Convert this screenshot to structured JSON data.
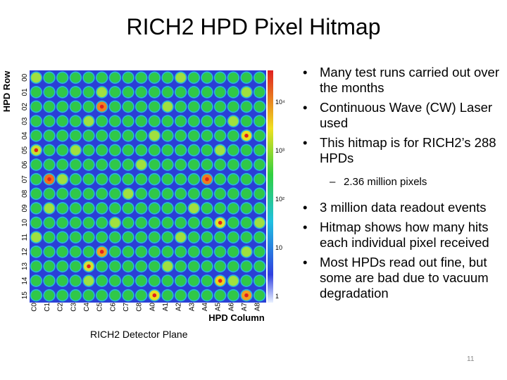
{
  "title": "RICH2 HPD Pixel Hitmap",
  "figure": {
    "axis_y_label": "HPD Row",
    "axis_x_label": "HPD Column",
    "row_labels": [
      "00",
      "01",
      "02",
      "03",
      "04",
      "05",
      "06",
      "07",
      "08",
      "09",
      "10",
      "11",
      "12",
      "13",
      "14",
      "15"
    ],
    "column_labels": [
      "C0",
      "C1",
      "C2",
      "C3",
      "C4",
      "C5",
      "C6",
      "C7",
      "C8",
      "A0",
      "A1",
      "A2",
      "A3",
      "A4",
      "A5",
      "A6",
      "A7",
      "A8"
    ],
    "colorbar_labels": [
      "10⁴",
      "10³",
      "10²",
      "10",
      "1"
    ],
    "caption": "RICH2 Detector Plane"
  },
  "bullets": [
    {
      "text": "Many test runs carried out over the months"
    },
    {
      "text": "Continuous Wave (CW) Laser used"
    },
    {
      "text": "This hitmap is for RICH2’s 288 HPDs",
      "sub": [
        "2.36 million pixels"
      ]
    },
    {
      "text": "3 million data readout events"
    },
    {
      "text": "Hitmap shows how many hits each individual pixel received"
    },
    {
      "text": "Most HPDs read out fine, but some are bad due to vacuum degradation"
    }
  ],
  "page_number": "11"
}
